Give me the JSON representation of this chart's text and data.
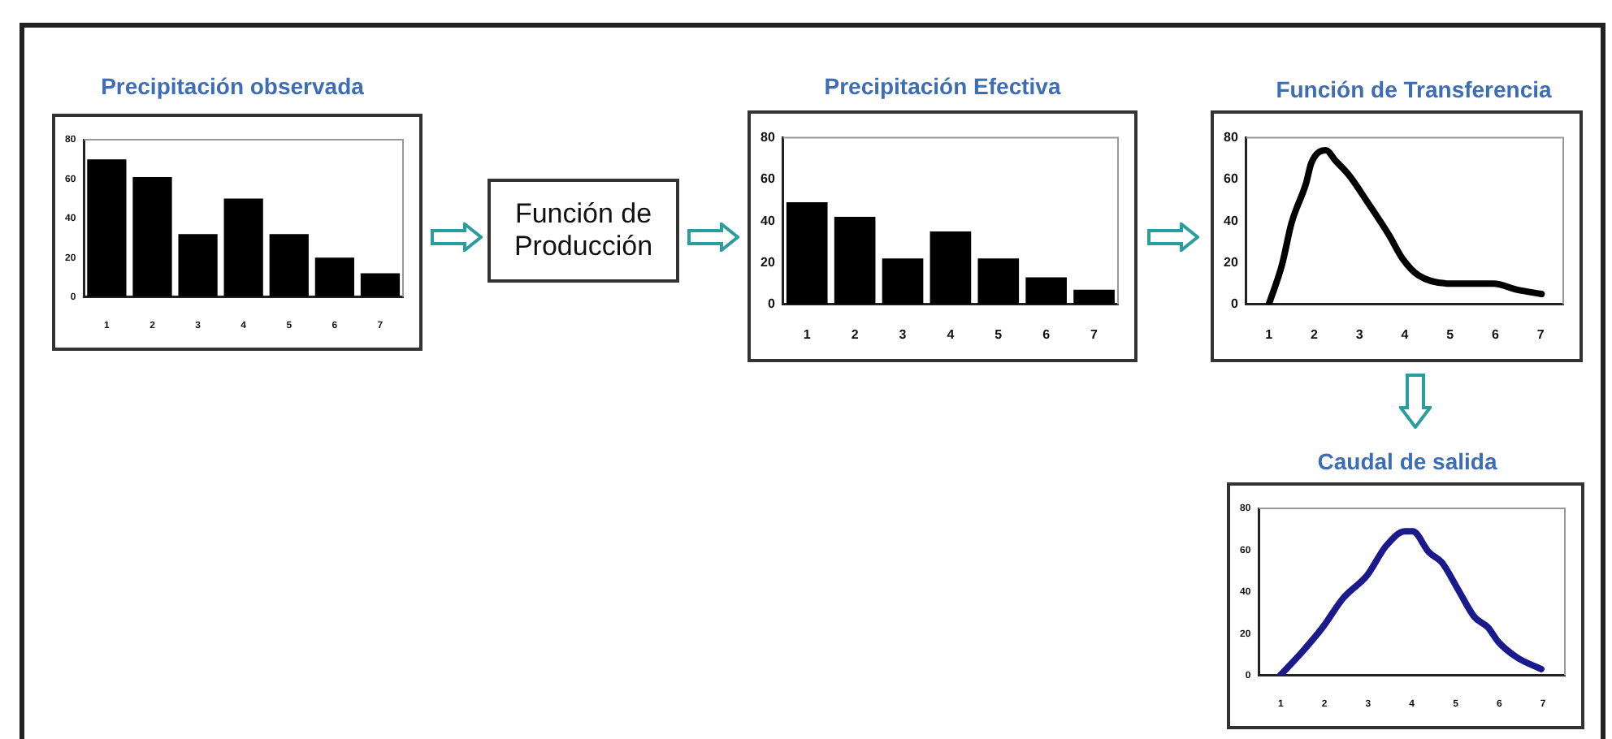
{
  "chart_data": [
    {
      "type": "bar",
      "title": "Precipitación observada",
      "categories": [
        "1",
        "2",
        "3",
        "4",
        "5",
        "6",
        "7"
      ],
      "values": [
        70,
        61,
        32,
        50,
        32,
        20,
        12
      ],
      "color": "#000000",
      "ylim": [
        0,
        80
      ],
      "yticks": [
        0,
        20,
        40,
        60,
        80
      ]
    },
    {
      "type": "other",
      "title": "Función de Producción"
    },
    {
      "type": "bar",
      "title": "Precipitación Efectiva",
      "categories": [
        "1",
        "2",
        "3",
        "4",
        "5",
        "6",
        "7"
      ],
      "values": [
        49,
        42,
        22,
        35,
        22,
        13,
        7
      ],
      "color": "#000000",
      "ylim": [
        0,
        80
      ],
      "yticks": [
        0,
        20,
        40,
        60,
        80
      ]
    },
    {
      "type": "line",
      "title": "Función de Transferencia",
      "x": [
        1.0,
        1.29,
        1.5,
        1.82,
        1.94,
        2.26,
        2.47,
        2.77,
        3.18,
        3.66,
        3.95,
        4.3,
        5.0,
        5.96,
        6.49,
        7.02
      ],
      "values": [
        0,
        19,
        39,
        58,
        68,
        74,
        69,
        62,
        49,
        33,
        22,
        14,
        10,
        10,
        7,
        5
      ],
      "color": "#000000",
      "xlim": [
        0.5,
        7.5
      ],
      "xticks": [
        1,
        2,
        3,
        4,
        5,
        6,
        7
      ],
      "ylim": [
        0,
        80
      ],
      "yticks": [
        0,
        20,
        40,
        60,
        80
      ],
      "marker": "none"
    },
    {
      "type": "line",
      "title": "Caudal de salida",
      "x": [
        0.99,
        1.48,
        1.96,
        2.43,
        2.98,
        3.41,
        3.84,
        4.02,
        4.39,
        4.69,
        5.06,
        5.43,
        5.74,
        5.98,
        6.41,
        6.96
      ],
      "values": [
        0,
        11,
        23,
        37,
        48,
        62,
        69,
        69,
        59,
        54,
        41,
        28,
        23,
        16,
        8.5,
        3
      ],
      "color": "#1a1a8c",
      "xlim": [
        0.5,
        7.5
      ],
      "xticks": [
        1,
        2,
        3,
        4,
        5,
        6,
        7
      ],
      "ylim": [
        0,
        80
      ],
      "yticks": [
        0,
        20,
        40,
        60,
        80
      ],
      "marker": "none"
    }
  ]
}
